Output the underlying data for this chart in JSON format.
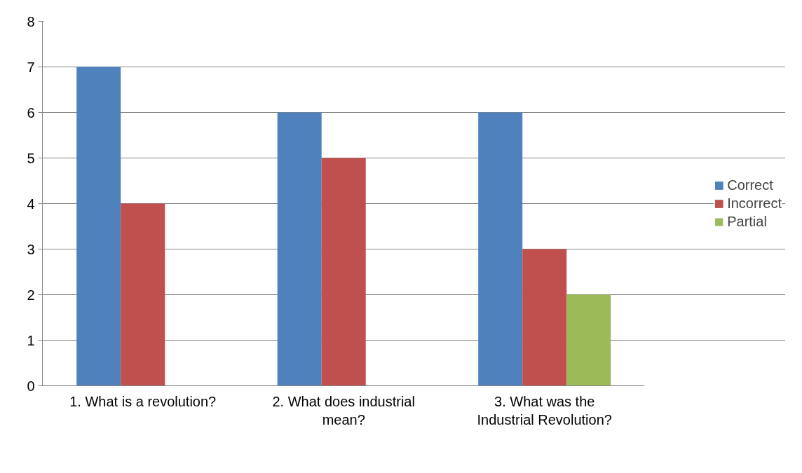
{
  "chart_data": {
    "type": "bar",
    "categories": [
      "1. What is a revolution?",
      "2. What does industrial mean?",
      "3. What was the Industrial Revolution?"
    ],
    "series": [
      {
        "name": "Correct",
        "color": "#4f81bd",
        "values": [
          7,
          6,
          6
        ]
      },
      {
        "name": "Incorrect",
        "color": "#c0504d",
        "values": [
          4,
          5,
          3
        ]
      },
      {
        "name": "Partial",
        "color": "#9bbb59",
        "values": [
          null,
          null,
          2
        ]
      }
    ],
    "ylim": [
      0,
      8
    ],
    "yticks": [
      0,
      1,
      2,
      3,
      4,
      5,
      6,
      7,
      8
    ],
    "grid": "y",
    "legend": "right"
  }
}
